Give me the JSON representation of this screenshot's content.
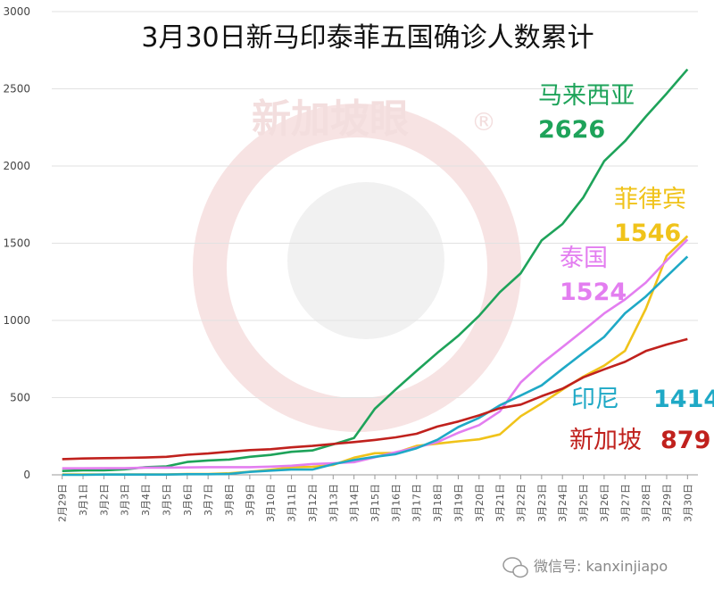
{
  "chart_data": {
    "type": "line",
    "title": "3月30日新马印泰菲五国确诊人数累计",
    "xlabel": "",
    "ylabel": "",
    "ylim": [
      0,
      3000
    ],
    "yticks": [
      0,
      500,
      1000,
      1500,
      2000,
      2500,
      3000
    ],
    "grid": true,
    "legend": "inline-labels",
    "categories": [
      "2月29日",
      "3月1日",
      "3月2日",
      "3月3日",
      "3月4日",
      "3月5日",
      "3月6日",
      "3月7日",
      "3月8日",
      "3月9日",
      "3月10日",
      "3月11日",
      "3月12日",
      "3月13日",
      "3月14日",
      "3月15日",
      "3月16日",
      "3月17日",
      "3月18日",
      "3月19日",
      "3月20日",
      "3月21日",
      "3月22日",
      "3月23日",
      "3月24日",
      "3月25日",
      "3月26日",
      "3月27日",
      "3月28日",
      "3月29日",
      "3月30日"
    ],
    "series": [
      {
        "name": "马来西亚",
        "color": "#1ea35a",
        "label_value": "2626",
        "values": [
          25,
          29,
          29,
          36,
          50,
          55,
          83,
          93,
          99,
          117,
          129,
          149,
          158,
          197,
          238,
          428,
          553,
          673,
          790,
          900,
          1030,
          1183,
          1306,
          1518,
          1624,
          1796,
          2031,
          2161,
          2320,
          2470,
          2626
        ]
      },
      {
        "name": "菲律宾",
        "color": "#f0c31a",
        "label_value": "1546",
        "values": [
          3,
          3,
          3,
          3,
          3,
          3,
          5,
          6,
          10,
          20,
          33,
          49,
          52,
          64,
          111,
          140,
          142,
          187,
          202,
          217,
          230,
          262,
          380,
          462,
          552,
          636,
          707,
          803,
          1075,
          1418,
          1546
        ]
      },
      {
        "name": "泰国",
        "color": "#e37ef0",
        "label_value": "1524",
        "values": [
          42,
          42,
          43,
          43,
          47,
          47,
          48,
          50,
          50,
          50,
          53,
          59,
          70,
          75,
          82,
          114,
          147,
          177,
          212,
          272,
          322,
          411,
          599,
          721,
          827,
          934,
          1045,
          1136,
          1245,
          1388,
          1524
        ]
      },
      {
        "name": "印尼",
        "color": "#1fa9c6",
        "label_value": "1414",
        "values": [
          0,
          0,
          2,
          2,
          2,
          2,
          4,
          4,
          6,
          19,
          27,
          34,
          34,
          69,
          96,
          117,
          134,
          172,
          227,
          309,
          369,
          450,
          514,
          579,
          686,
          790,
          893,
          1046,
          1155,
          1285,
          1414
        ]
      },
      {
        "name": "新加坡",
        "color": "#c0211d",
        "label_value": "879",
        "values": [
          102,
          106,
          108,
          110,
          112,
          117,
          130,
          138,
          150,
          160,
          166,
          178,
          187,
          200,
          212,
          226,
          243,
          266,
          313,
          345,
          385,
          432,
          455,
          509,
          558,
          631,
          683,
          732,
          802,
          844,
          879
        ]
      }
    ]
  },
  "watermark": "新加坡眼",
  "watermark_mark": "®",
  "footer_text": "微信号: kanxinjiapo",
  "wechat_icon": "wechat-icon"
}
